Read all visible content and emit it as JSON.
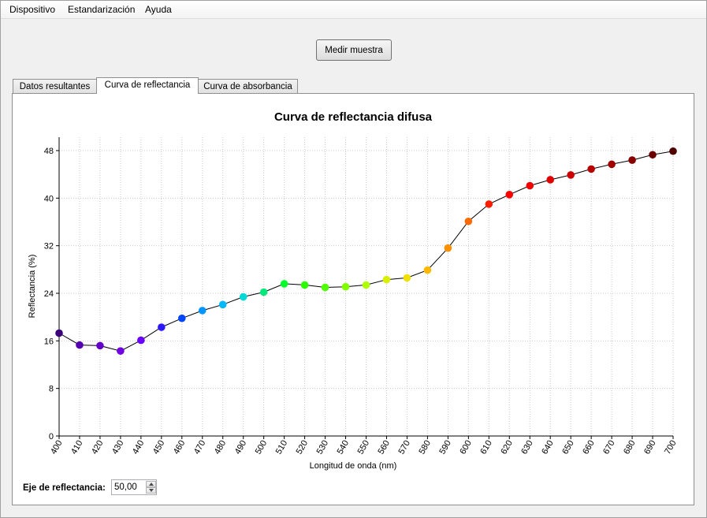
{
  "menu": {
    "items": [
      "Dispositivo",
      "Estandarización",
      "Ayuda"
    ]
  },
  "toolbar": {
    "measure_label": "Medir muestra"
  },
  "tabs": [
    {
      "label": "Datos resultantes",
      "active": false
    },
    {
      "label": "Curva de reflectancia",
      "active": true
    },
    {
      "label": "Curva de absorbancia",
      "active": false
    }
  ],
  "controls": {
    "axis_label": "Eje de reflectancia:",
    "axis_value": "50,00"
  },
  "chart_data": {
    "type": "line",
    "title": "Curva de reflectancia difusa",
    "xlabel": "Longitud de onda (nm)",
    "ylabel": "Reflectancia (%)",
    "xlim": [
      400,
      700
    ],
    "ylim": [
      0,
      48
    ],
    "x_ticks": [
      400,
      410,
      420,
      430,
      440,
      450,
      460,
      470,
      480,
      490,
      500,
      510,
      520,
      530,
      540,
      550,
      560,
      570,
      580,
      590,
      600,
      610,
      620,
      630,
      640,
      650,
      660,
      670,
      680,
      690,
      700
    ],
    "y_ticks": [
      0,
      8,
      16,
      24,
      32,
      40,
      48
    ],
    "grid": true,
    "line_color": "#000000",
    "x": [
      400,
      410,
      420,
      430,
      440,
      450,
      460,
      470,
      480,
      490,
      500,
      510,
      520,
      530,
      540,
      550,
      560,
      570,
      580,
      590,
      600,
      610,
      620,
      630,
      640,
      650,
      660,
      670,
      680,
      690,
      700
    ],
    "y": [
      17.3,
      15.3,
      15.2,
      14.3,
      16.1,
      18.3,
      19.8,
      21.1,
      22.1,
      23.4,
      24.2,
      25.6,
      25.4,
      25.0,
      25.1,
      25.4,
      26.3,
      26.6,
      27.9,
      31.6,
      36.1,
      39.0,
      40.6,
      42.1,
      43.1,
      43.9,
      44.9,
      45.7,
      46.4,
      47.3,
      47.9
    ],
    "point_colors": [
      "#3a007a",
      "#5500b0",
      "#6200c8",
      "#7000e0",
      "#6a00ff",
      "#2b18ff",
      "#0046ff",
      "#0094ff",
      "#00b8ff",
      "#00d8d8",
      "#00e87a",
      "#00ff2a",
      "#2cff00",
      "#50ff00",
      "#80ff00",
      "#b0ff00",
      "#d8f000",
      "#f0e000",
      "#ffb800",
      "#ff9000",
      "#ff6a00",
      "#ff1c00",
      "#ff0000",
      "#f00000",
      "#e00000",
      "#cc0000",
      "#b80000",
      "#a00000",
      "#860000",
      "#6a0000",
      "#500000"
    ]
  }
}
